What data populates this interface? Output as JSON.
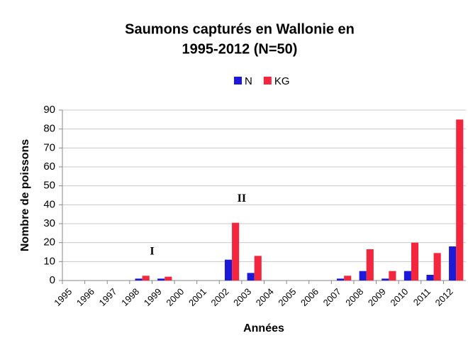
{
  "chart_data": {
    "type": "bar",
    "title": [
      "Saumons capturés en Wallonie en",
      "1995-2012 (N=50)"
    ],
    "x_label": "Années",
    "y_label": "Nombre de poissons",
    "categories": [
      "1995",
      "1996",
      "1997",
      "1998",
      "1999",
      "2000",
      "2001",
      "2002",
      "2003",
      "2004",
      "2005",
      "2006",
      "2007",
      "2008",
      "2009",
      "2010",
      "2011",
      "2012"
    ],
    "series": [
      {
        "name": "N",
        "color": "#1c1ad8",
        "values": [
          0,
          0,
          0,
          1,
          1,
          0,
          0,
          11,
          4,
          0,
          0,
          0,
          1,
          5,
          1,
          5,
          3,
          18
        ]
      },
      {
        "name": "KG",
        "color": "#f4263d",
        "values": [
          0,
          0,
          0,
          2.5,
          2,
          0,
          0,
          30.5,
          13,
          0,
          0,
          0,
          2.5,
          16.5,
          5,
          20,
          14.5,
          85
        ]
      }
    ],
    "annotations": [
      {
        "text": "I",
        "x": "1998",
        "y": 15
      },
      {
        "text": "II",
        "x": "2002",
        "y": 43
      }
    ],
    "ylim": [
      0,
      90
    ],
    "yticks": [
      0,
      10,
      20,
      30,
      40,
      50,
      60,
      70,
      80,
      90
    ],
    "grid": true,
    "legend": "top"
  }
}
